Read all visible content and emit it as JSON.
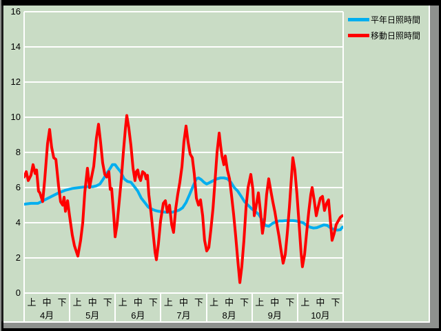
{
  "window": {
    "title": ""
  },
  "colors": {
    "background": "#c9dcc5",
    "gridline": "#ffffff",
    "text": "#000000",
    "normal_line": "#00aeef",
    "moving_line": "#ff0000",
    "bezel_gray": "#8e918e",
    "frame_black": "#000000"
  },
  "chart_data": {
    "type": "line",
    "title": "",
    "xlabel": "",
    "ylabel": "",
    "ylim": [
      0,
      16
    ],
    "grid": "horizontal white gridlines every 2 units; white verticals at month boundaries below axis",
    "legend_position": "top-right",
    "y_axis": {
      "min": 0,
      "max": 16,
      "tick_step": 2,
      "ticks": [
        0,
        2,
        4,
        6,
        8,
        10,
        12,
        14,
        16
      ]
    },
    "x_axis": {
      "months": [
        "4月",
        "5月",
        "6月",
        "7月",
        "8月",
        "9月",
        "10月"
      ],
      "period_labels": [
        "上",
        "中",
        "下"
      ],
      "periods_per_month": 3,
      "unit": "jun (10-day period), u = 0..21 across Apr-Oct"
    },
    "legend": [
      {
        "label": "平年日照時間",
        "color": "#00aeef"
      },
      {
        "label": "移動日照時間",
        "color": "#ff0000"
      }
    ],
    "series": [
      {
        "name": "平年日照時間",
        "color": "#00aeef",
        "width": 4,
        "points": [
          [
            0,
            5.05
          ],
          [
            0.45,
            5.1
          ],
          [
            0.91,
            5.1
          ],
          [
            1.36,
            5.3
          ],
          [
            1.81,
            5.5
          ],
          [
            2.27,
            5.7
          ],
          [
            2.72,
            5.85
          ],
          [
            3.17,
            5.95
          ],
          [
            3.63,
            6.0
          ],
          [
            4.08,
            6.05
          ],
          [
            4.54,
            6.05
          ],
          [
            4.76,
            6.1
          ],
          [
            4.99,
            6.2
          ],
          [
            5.22,
            6.5
          ],
          [
            5.44,
            6.8
          ],
          [
            5.67,
            7.1
          ],
          [
            5.81,
            7.3
          ],
          [
            5.99,
            7.3
          ],
          [
            6.12,
            7.15
          ],
          [
            6.35,
            6.9
          ],
          [
            6.58,
            6.5
          ],
          [
            6.8,
            6.35
          ],
          [
            7.03,
            6.3
          ],
          [
            7.26,
            6.05
          ],
          [
            7.48,
            5.8
          ],
          [
            7.71,
            5.4
          ],
          [
            7.94,
            5.15
          ],
          [
            8.16,
            4.9
          ],
          [
            8.39,
            4.78
          ],
          [
            8.62,
            4.7
          ],
          [
            8.84,
            4.65
          ],
          [
            9.3,
            4.6
          ],
          [
            9.75,
            4.6
          ],
          [
            9.98,
            4.65
          ],
          [
            10.21,
            4.72
          ],
          [
            10.43,
            4.85
          ],
          [
            10.66,
            5.15
          ],
          [
            10.89,
            5.6
          ],
          [
            11.11,
            6.05
          ],
          [
            11.34,
            6.5
          ],
          [
            11.48,
            6.55
          ],
          [
            11.66,
            6.45
          ],
          [
            11.84,
            6.3
          ],
          [
            12.02,
            6.2
          ],
          [
            12.25,
            6.3
          ],
          [
            12.47,
            6.4
          ],
          [
            12.7,
            6.5
          ],
          [
            12.93,
            6.55
          ],
          [
            13.15,
            6.55
          ],
          [
            13.38,
            6.5
          ],
          [
            13.61,
            6.3
          ],
          [
            13.83,
            6.0
          ],
          [
            14.06,
            5.8
          ],
          [
            14.29,
            5.5
          ],
          [
            14.51,
            5.2
          ],
          [
            14.74,
            5.0
          ],
          [
            14.97,
            4.8
          ],
          [
            15.19,
            4.65
          ],
          [
            15.42,
            4.5
          ],
          [
            15.65,
            4.2
          ],
          [
            15.87,
            3.85
          ],
          [
            16.1,
            3.8
          ],
          [
            16.33,
            3.95
          ],
          [
            16.55,
            4.05
          ],
          [
            16.78,
            4.1
          ],
          [
            17.01,
            4.1
          ],
          [
            17.23,
            4.12
          ],
          [
            17.46,
            4.12
          ],
          [
            17.69,
            4.12
          ],
          [
            17.91,
            4.1
          ],
          [
            18.14,
            4.05
          ],
          [
            18.37,
            4.0
          ],
          [
            18.59,
            3.85
          ],
          [
            18.82,
            3.75
          ],
          [
            19.05,
            3.7
          ],
          [
            19.27,
            3.72
          ],
          [
            19.5,
            3.8
          ],
          [
            19.73,
            3.88
          ],
          [
            19.95,
            3.85
          ],
          [
            20.18,
            3.7
          ],
          [
            20.41,
            3.62
          ],
          [
            20.63,
            3.58
          ],
          [
            20.81,
            3.6
          ],
          [
            20.95,
            3.75
          ]
        ]
      },
      {
        "name": "移動日照時間",
        "color": "#ff0000",
        "width": 4,
        "points": [
          [
            0,
            6.6
          ],
          [
            0.14,
            6.9
          ],
          [
            0.27,
            6.4
          ],
          [
            0.45,
            6.7
          ],
          [
            0.59,
            7.3
          ],
          [
            0.73,
            6.8
          ],
          [
            0.82,
            7.0
          ],
          [
            0.95,
            5.8
          ],
          [
            1.04,
            5.7
          ],
          [
            1.22,
            5.2
          ],
          [
            1.36,
            6.5
          ],
          [
            1.54,
            8.5
          ],
          [
            1.68,
            9.3
          ],
          [
            1.81,
            8.3
          ],
          [
            1.95,
            7.7
          ],
          [
            2.09,
            7.6
          ],
          [
            2.27,
            6.1
          ],
          [
            2.4,
            5.2
          ],
          [
            2.54,
            5.0
          ],
          [
            2.63,
            5.45
          ],
          [
            2.72,
            4.65
          ],
          [
            2.86,
            5.25
          ],
          [
            2.99,
            4.4
          ],
          [
            3.17,
            3.3
          ],
          [
            3.31,
            2.7
          ],
          [
            3.54,
            2.1
          ],
          [
            3.72,
            3.0
          ],
          [
            3.86,
            4.0
          ],
          [
            3.99,
            5.7
          ],
          [
            4.17,
            7.1
          ],
          [
            4.31,
            6.0
          ],
          [
            4.44,
            6.6
          ],
          [
            4.58,
            7.2
          ],
          [
            4.76,
            8.8
          ],
          [
            4.9,
            9.6
          ],
          [
            5.03,
            8.6
          ],
          [
            5.17,
            7.4
          ],
          [
            5.31,
            6.75
          ],
          [
            5.44,
            6.6
          ],
          [
            5.58,
            6.9
          ],
          [
            5.67,
            5.9
          ],
          [
            5.76,
            5.95
          ],
          [
            5.9,
            4.4
          ],
          [
            5.99,
            3.2
          ],
          [
            6.12,
            3.9
          ],
          [
            6.26,
            5.2
          ],
          [
            6.4,
            6.5
          ],
          [
            6.53,
            8.0
          ],
          [
            6.67,
            9.4
          ],
          [
            6.76,
            10.1
          ],
          [
            6.89,
            9.4
          ],
          [
            7.03,
            8.4
          ],
          [
            7.17,
            7.1
          ],
          [
            7.3,
            6.4
          ],
          [
            7.39,
            6.9
          ],
          [
            7.48,
            7.0
          ],
          [
            7.57,
            6.6
          ],
          [
            7.67,
            6.4
          ],
          [
            7.8,
            6.9
          ],
          [
            7.94,
            6.8
          ],
          [
            8.03,
            6.5
          ],
          [
            8.12,
            6.7
          ],
          [
            8.21,
            5.6
          ],
          [
            8.35,
            4.6
          ],
          [
            8.48,
            3.5
          ],
          [
            8.62,
            2.3
          ],
          [
            8.71,
            1.9
          ],
          [
            8.84,
            2.8
          ],
          [
            8.98,
            4.1
          ],
          [
            9.16,
            5.1
          ],
          [
            9.3,
            5.25
          ],
          [
            9.43,
            4.6
          ],
          [
            9.57,
            5.0
          ],
          [
            9.71,
            3.9
          ],
          [
            9.84,
            3.45
          ],
          [
            9.98,
            4.8
          ],
          [
            10.11,
            5.6
          ],
          [
            10.25,
            6.3
          ],
          [
            10.39,
            7.2
          ],
          [
            10.52,
            8.6
          ],
          [
            10.66,
            9.5
          ],
          [
            10.79,
            8.6
          ],
          [
            10.93,
            7.9
          ],
          [
            11.07,
            7.7
          ],
          [
            11.2,
            6.8
          ],
          [
            11.34,
            5.4
          ],
          [
            11.48,
            5.0
          ],
          [
            11.61,
            5.3
          ],
          [
            11.75,
            4.4
          ],
          [
            11.88,
            3.0
          ],
          [
            12.02,
            2.4
          ],
          [
            12.16,
            2.6
          ],
          [
            12.29,
            3.6
          ],
          [
            12.43,
            4.8
          ],
          [
            12.56,
            6.3
          ],
          [
            12.7,
            8.0
          ],
          [
            12.84,
            9.1
          ],
          [
            12.93,
            8.4
          ],
          [
            13.02,
            7.8
          ],
          [
            13.15,
            7.3
          ],
          [
            13.24,
            7.8
          ],
          [
            13.38,
            7.0
          ],
          [
            13.52,
            6.5
          ],
          [
            13.65,
            5.6
          ],
          [
            13.79,
            4.5
          ],
          [
            13.92,
            3.3
          ],
          [
            14.06,
            1.9
          ],
          [
            14.2,
            0.6
          ],
          [
            14.33,
            1.5
          ],
          [
            14.47,
            3.0
          ],
          [
            14.61,
            4.9
          ],
          [
            14.74,
            6.0
          ],
          [
            14.92,
            6.75
          ],
          [
            15.06,
            5.9
          ],
          [
            15.15,
            4.4
          ],
          [
            15.28,
            5.0
          ],
          [
            15.42,
            5.7
          ],
          [
            15.56,
            4.6
          ],
          [
            15.69,
            3.4
          ],
          [
            15.83,
            4.2
          ],
          [
            15.96,
            5.6
          ],
          [
            16.1,
            6.5
          ],
          [
            16.24,
            5.8
          ],
          [
            16.37,
            5.2
          ],
          [
            16.51,
            4.6
          ],
          [
            16.64,
            3.9
          ],
          [
            16.78,
            3.2
          ],
          [
            16.92,
            2.4
          ],
          [
            17.05,
            1.7
          ],
          [
            17.19,
            2.2
          ],
          [
            17.32,
            3.4
          ],
          [
            17.46,
            4.9
          ],
          [
            17.6,
            6.6
          ],
          [
            17.69,
            7.7
          ],
          [
            17.82,
            7.0
          ],
          [
            17.96,
            5.6
          ],
          [
            18.1,
            3.9
          ],
          [
            18.23,
            2.3
          ],
          [
            18.32,
            1.5
          ],
          [
            18.46,
            2.2
          ],
          [
            18.59,
            3.4
          ],
          [
            18.73,
            4.6
          ],
          [
            18.87,
            5.6
          ],
          [
            18.96,
            6.0
          ],
          [
            19.09,
            5.3
          ],
          [
            19.23,
            4.4
          ],
          [
            19.36,
            4.9
          ],
          [
            19.5,
            5.4
          ],
          [
            19.64,
            5.5
          ],
          [
            19.77,
            4.7
          ],
          [
            19.91,
            5.1
          ],
          [
            20.04,
            5.3
          ],
          [
            20.18,
            3.9
          ],
          [
            20.27,
            3.0
          ],
          [
            20.41,
            3.4
          ],
          [
            20.54,
            3.9
          ],
          [
            20.68,
            4.1
          ],
          [
            20.81,
            4.3
          ],
          [
            20.95,
            4.4
          ]
        ]
      }
    ]
  }
}
